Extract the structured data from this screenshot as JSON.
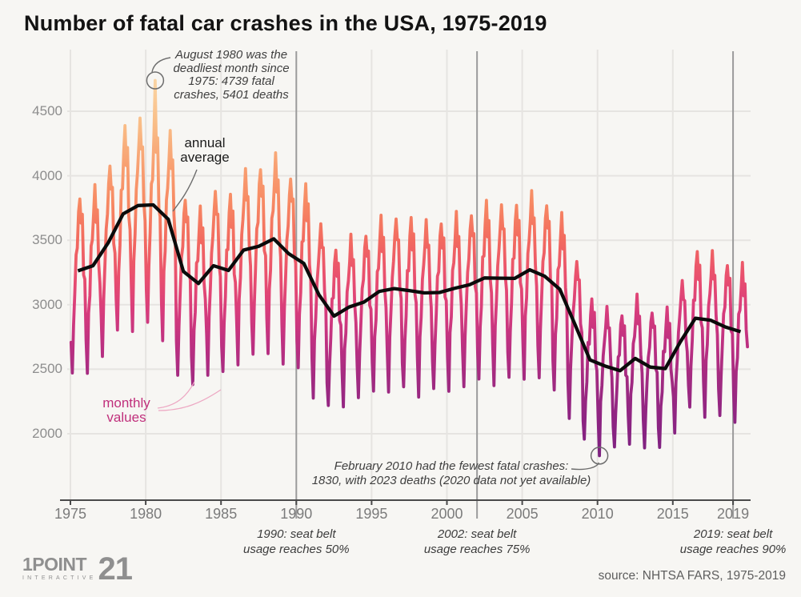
{
  "title": "Number of fatal car crashes in the USA, 1975-2019",
  "source_note": "source: NHTSA FARS, 1975-2019",
  "logo": {
    "brand_main": "1POINT",
    "brand_number": "21",
    "brand_sub": "INTERACTIVE"
  },
  "colors": {
    "background": "#f7f6f3",
    "grid": "#e6e4e1",
    "highlight_grid": "#9b9b9b",
    "axis_line": "#4a4a4a",
    "annual_line": "#0b0b0b",
    "monthly_label_text": "#c0307c",
    "monthly_leader": "#eda8c3",
    "annotation_leader": "#6d6d6d"
  },
  "chart_data": {
    "type": "line",
    "title": "Number of fatal car crashes in the USA, 1975-2019",
    "xlabel": "",
    "ylabel": "",
    "x_axis": {
      "ticks": [
        1975,
        1980,
        1985,
        1990,
        1995,
        2000,
        2005,
        2010,
        2015,
        2019
      ],
      "start_year": 1975,
      "end_year": 2019
    },
    "y_axis": {
      "ticks": [
        2000,
        2500,
        3000,
        3500,
        4000,
        4500
      ],
      "range": [
        1480,
        4980
      ]
    },
    "grid": true,
    "highlight_years": [
      1990,
      2002,
      2019
    ],
    "series": [
      {
        "name": "annual average",
        "color": "#0b0b0b",
        "x_years": "1975-2019, one point per year at mid-year",
        "values": [
          3263,
          3302,
          3479,
          3705,
          3769,
          3774,
          3662,
          3258,
          3165,
          3303,
          3266,
          3424,
          3453,
          3511,
          3395,
          3320,
          3078,
          2912,
          2982,
          3021,
          3103,
          3125,
          3110,
          3092,
          3095,
          3127,
          3155,
          3208,
          3206,
          3204,
          3271,
          3221,
          3120,
          2848,
          2572,
          2525,
          2489,
          2584,
          2517,
          2505,
          2712,
          2896,
          2880,
          2827,
          2791
        ]
      },
      {
        "name": "monthly values",
        "x_months": "Jan 1975 - Dec 2019",
        "derivation": "annual average of that year multiplied by seasonal factor of the month (Jan-Dec), plus small variation",
        "seasonal_factors": [
          0.83,
          0.75,
          0.88,
          0.94,
          1.04,
          1.06,
          1.13,
          1.18,
          1.11,
          1.13,
          1.0,
          0.97
        ],
        "overrides": {
          "1980-08": 4739,
          "2010-02": 1830
        },
        "gradient_stops": [
          {
            "value": 4980,
            "color": "#fcdeb6"
          },
          {
            "value": 4700,
            "color": "#fad2a0"
          },
          {
            "value": 4400,
            "color": "#f9bd87"
          },
          {
            "value": 4100,
            "color": "#f8a273"
          },
          {
            "value": 3800,
            "color": "#f78a63"
          },
          {
            "value": 3500,
            "color": "#f26a5f"
          },
          {
            "value": 3200,
            "color": "#e84e6f"
          },
          {
            "value": 2950,
            "color": "#d73c7c"
          },
          {
            "value": 2700,
            "color": "#bd3081"
          },
          {
            "value": 2400,
            "color": "#a02a81"
          },
          {
            "value": 2100,
            "color": "#8d2482"
          },
          {
            "value": 1800,
            "color": "#7b2180"
          },
          {
            "value": 1480,
            "color": "#6e1f7e"
          }
        ]
      }
    ],
    "annotations": {
      "aug1980": {
        "lines": [
          "August 1980 was the",
          "deadliest month since",
          "1975: 4739 fatal",
          "crashes, 5401 deaths"
        ],
        "point": {
          "month": "1980-08",
          "value": 4739
        }
      },
      "feb2010": {
        "lines": [
          "February 2010 had the fewest fatal crashes:",
          "1830, with 2023 deaths (2020 data not yet available)"
        ],
        "point": {
          "month": "2010-02",
          "value": 1830
        }
      },
      "annual_label": {
        "lines": [
          "annual",
          "average"
        ]
      },
      "monthly_label": {
        "lines": [
          "monthly",
          "values"
        ]
      },
      "seatbelt": [
        {
          "year": 1990,
          "lines": [
            "1990: seat belt",
            "usage reaches 50%"
          ]
        },
        {
          "year": 2002,
          "lines": [
            "2002: seat belt",
            "usage reaches 75%"
          ]
        },
        {
          "year": 2019,
          "lines": [
            "2019: seat belt",
            "usage reaches 90%"
          ]
        }
      ]
    }
  }
}
